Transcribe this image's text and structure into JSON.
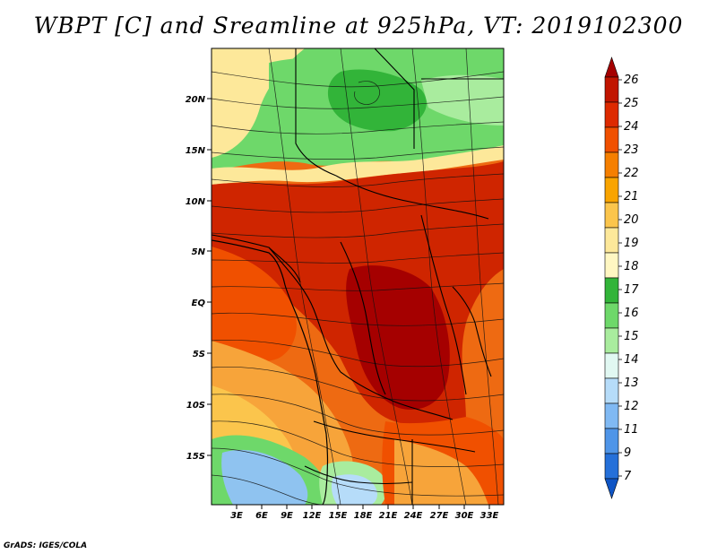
{
  "title": "WBPT [C] and Sreamline at 925hPa, VT: 2019102300",
  "footer": "GrADS: IGES/COLA",
  "map": {
    "lat_labels": [
      "20N",
      "15N",
      "10N",
      "5N",
      "EQ",
      "5S",
      "10S",
      "15S"
    ],
    "lon_labels": [
      "3E",
      "6E",
      "9E",
      "12E",
      "15E",
      "18E",
      "21E",
      "24E",
      "27E",
      "30E",
      "33E"
    ]
  },
  "colorbar": {
    "labels": [
      "26",
      "25",
      "24",
      "23",
      "22",
      "21",
      "20",
      "19",
      "18",
      "17",
      "16",
      "15",
      "14",
      "13",
      "12",
      "11",
      "9",
      "7"
    ],
    "colors": [
      "#a50000",
      "#c11500",
      "#dd2a00",
      "#f05000",
      "#f57f00",
      "#f9a400",
      "#fbc54c",
      "#fde89a",
      "#fff7c2",
      "#32b439",
      "#6ed86a",
      "#a9ec9e",
      "#e1f8f2",
      "#b6dcf9",
      "#80b9f3",
      "#4f95e8",
      "#2570d9",
      "#0f55c5"
    ]
  },
  "colors": {
    "hot": "#cf2500",
    "warm": "#ee6a12",
    "orange": "#f7a43a",
    "cool_green": "#6ed86a",
    "cool_blue": "#8fc3f0"
  }
}
